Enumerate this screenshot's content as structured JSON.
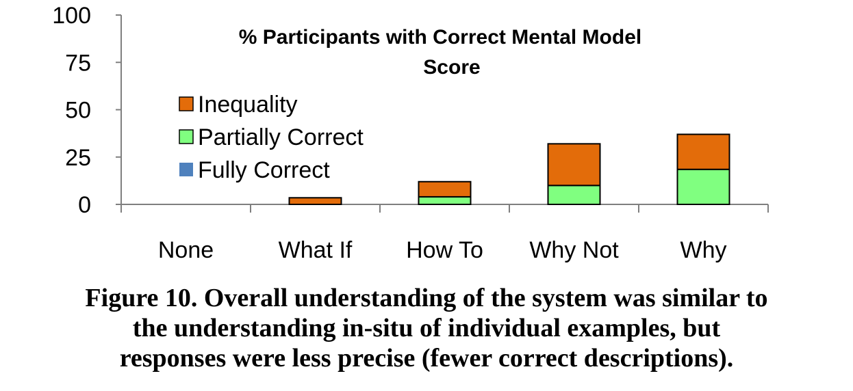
{
  "chart_data": {
    "type": "bar",
    "stacked": true,
    "title_lines": [
      "% Participants with Correct Mental Model",
      "Score"
    ],
    "xlabel": "",
    "ylabel": "",
    "categories": [
      "None",
      "What If",
      "How To",
      "Why Not",
      "Why"
    ],
    "ylim": [
      0,
      100
    ],
    "yticks": [
      "0",
      "25",
      "50",
      "75",
      "100"
    ],
    "series": [
      {
        "name": "Fully Correct",
        "color": "#4F81BD",
        "values": [
          0,
          0,
          0,
          0,
          0
        ]
      },
      {
        "name": "Partially Correct",
        "color": "#80FF80",
        "values": [
          0,
          0,
          4,
          10,
          18.5
        ]
      },
      {
        "name": "Inequality",
        "color": "#E36C0A",
        "values": [
          0,
          3.5,
          8,
          22,
          18.5
        ]
      }
    ],
    "legend": {
      "placement": "upper-left",
      "order": [
        "Inequality",
        "Partially Correct",
        "Fully Correct"
      ]
    },
    "grid": false
  },
  "caption_lines": [
    "Figure 10. Overall understanding of the system was similar to",
    "the understanding in-situ of individual examples, but",
    "responses were less precise (fewer correct descriptions)."
  ]
}
